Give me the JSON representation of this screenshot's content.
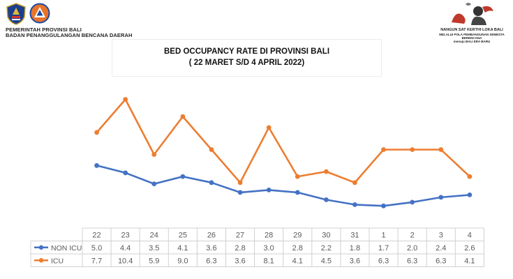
{
  "header": {
    "org_line1": "PEMERINTAH PROVINSI BALI",
    "org_line2": "BADAN PENANGGULANGAN BENCANA DAERAH",
    "motto_title": "NANGUN SAT KERTHI LOKA BALI",
    "motto_sub1": "MELALUI POLA PEMBANGUNAN SEMESTA",
    "motto_sub2": "BERENCANA",
    "motto_sub3": "menuju BALI ERA BARU"
  },
  "colors": {
    "non_icu": "#4472c4",
    "icu": "#ed7d31",
    "table_border": "#d0d0d0",
    "text": "#595959"
  },
  "chart_data": {
    "type": "line",
    "title": "BED OCCUPANCY RATE DI PROVINSI BALI",
    "subtitle": "( 22 MARET S/D 4 APRIL 2022)",
    "categories": [
      "22",
      "23",
      "24",
      "25",
      "26",
      "27",
      "28",
      "29",
      "30",
      "31",
      "1",
      "2",
      "3",
      "4"
    ],
    "series": [
      {
        "name": "NON ICU",
        "color": "#4472c4",
        "values": [
          5.0,
          4.4,
          3.5,
          4.1,
          3.6,
          2.8,
          3.0,
          2.8,
          2.2,
          1.8,
          1.7,
          2.0,
          2.4,
          2.6
        ]
      },
      {
        "name": "ICU",
        "color": "#ed7d31",
        "values": [
          7.7,
          10.4,
          5.9,
          9.0,
          6.3,
          3.6,
          8.1,
          4.1,
          4.5,
          3.6,
          6.3,
          6.3,
          6.3,
          4.1
        ]
      }
    ],
    "ylim": [
      0,
      11
    ],
    "grid": false,
    "legend": "data-table-left"
  }
}
